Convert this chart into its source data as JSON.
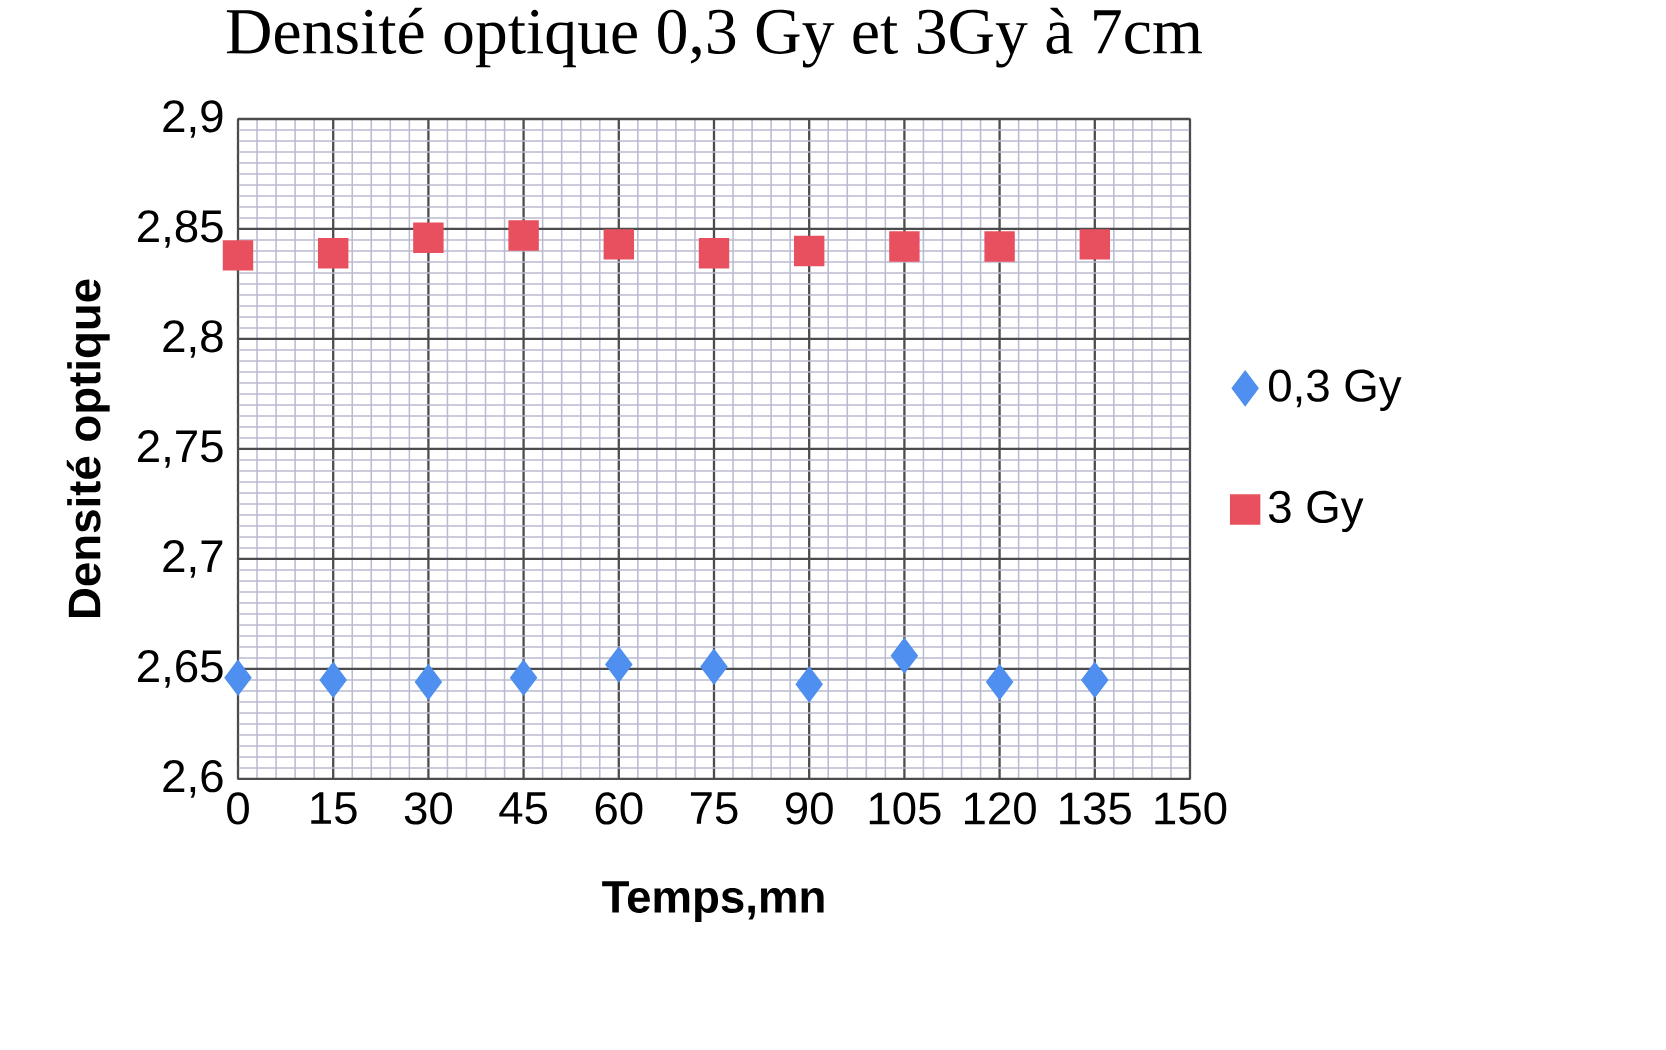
{
  "chart_data": {
    "type": "scatter",
    "title": "Densité optique 0,3 Gy et 3Gy à 7cm",
    "xlabel": "Temps,mn",
    "ylabel": "Densité optique",
    "x": [
      0,
      15,
      30,
      45,
      60,
      75,
      90,
      105,
      120,
      135
    ],
    "series": [
      {
        "name": "0,3 Gy",
        "color": "#4f8fef",
        "marker": "diamond",
        "values": [
          2.646,
          2.645,
          2.644,
          2.646,
          2.652,
          2.651,
          2.643,
          2.656,
          2.644,
          2.645
        ]
      },
      {
        "name": "3 Gy",
        "color": "#e8505f",
        "marker": "square",
        "values": [
          2.838,
          2.839,
          2.846,
          2.847,
          2.843,
          2.839,
          2.84,
          2.842,
          2.842,
          2.843
        ]
      }
    ],
    "xlim": [
      0,
      150
    ],
    "xticks": [
      0,
      15,
      30,
      45,
      60,
      75,
      90,
      105,
      120,
      135,
      150
    ],
    "ylim": [
      2.6,
      2.9
    ],
    "yticks": [
      {
        "value": 2.6,
        "label": "2,6"
      },
      {
        "value": 2.65,
        "label": "2,65"
      },
      {
        "value": 2.7,
        "label": "2,7"
      },
      {
        "value": 2.75,
        "label": "2,75"
      },
      {
        "value": 2.8,
        "label": "2,8"
      },
      {
        "value": 2.85,
        "label": "2,85"
      },
      {
        "value": 2.9,
        "label": "2,9"
      }
    ],
    "grid": true,
    "legend": "right"
  }
}
